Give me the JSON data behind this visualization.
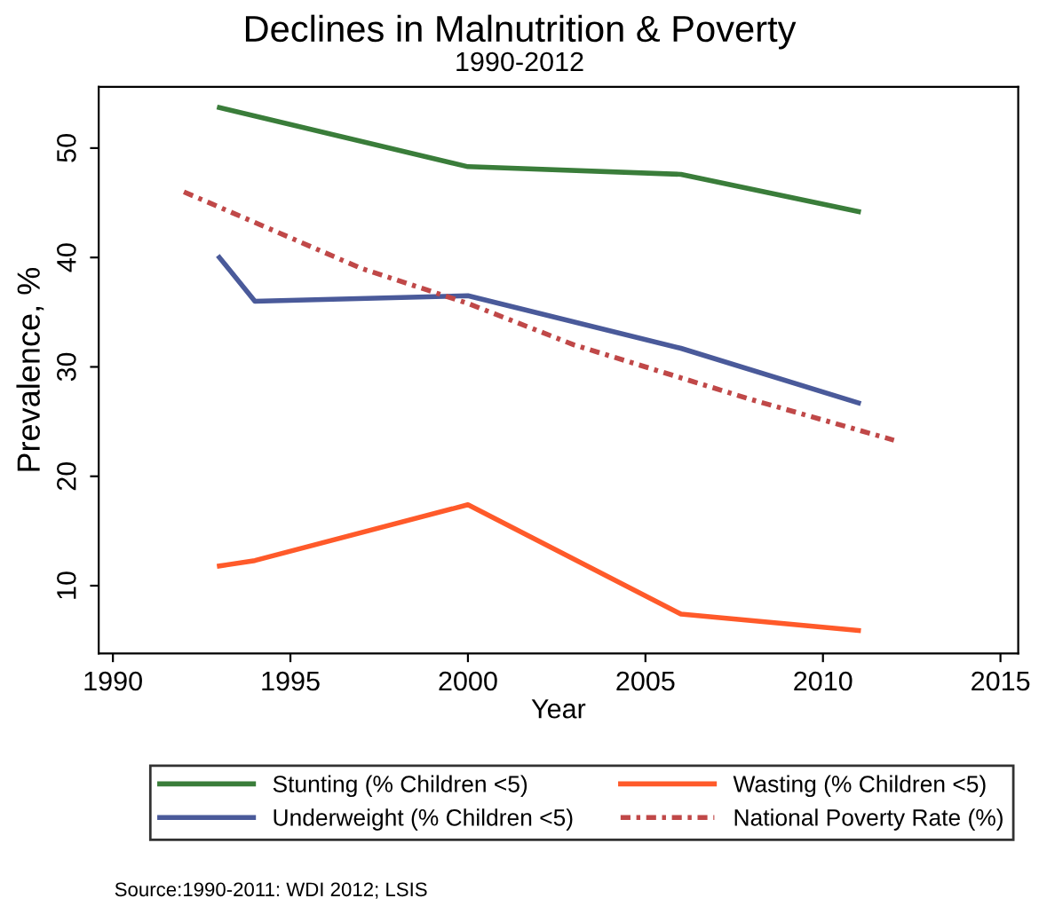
{
  "chart_data": {
    "type": "line",
    "title": "Declines in Malnutrition & Poverty",
    "subtitle": "1990-2012",
    "xlabel": "Year",
    "ylabel": "Prevalence, %",
    "xlim": [
      1989.6,
      2015.5
    ],
    "xticks": [
      1990,
      1995,
      2000,
      2005,
      2010,
      2015
    ],
    "ylim": [
      3.8,
      55.6
    ],
    "yticks": [
      10,
      20,
      30,
      40,
      50
    ],
    "grid": false,
    "legend": "bottom",
    "marker": "none",
    "series": [
      {
        "name": "Stunting (% Children <5)",
        "color": "#3a7d3a",
        "x": [
          1993,
          2000,
          2006,
          2011
        ],
        "values": [
          53.7,
          48.3,
          47.6,
          44.2
        ]
      },
      {
        "name": "Underweight (% Children <5)",
        "color": "#4a5a9a",
        "x": [
          1993,
          1994,
          2000,
          2006,
          2011
        ],
        "values": [
          40,
          36,
          36.5,
          31.7,
          26.7
        ]
      },
      {
        "name": "Wasting (% Children <5)",
        "color": "#ff5a2a",
        "x": [
          1993,
          1994,
          2000,
          2006,
          2011
        ],
        "values": [
          11.8,
          12.3,
          17.4,
          7.4,
          5.9
        ]
      },
      {
        "name": "National Poverty Rate (%)",
        "color": "#c04848",
        "line_style": "dashed",
        "x": [
          1992,
          1997,
          2000,
          2003,
          2008,
          2012
        ],
        "values": [
          46,
          39,
          35.8,
          32,
          27,
          23.3
        ]
      }
    ],
    "annotations": [
      "Source:1990-2011: WDI 2012; LSIS"
    ]
  }
}
